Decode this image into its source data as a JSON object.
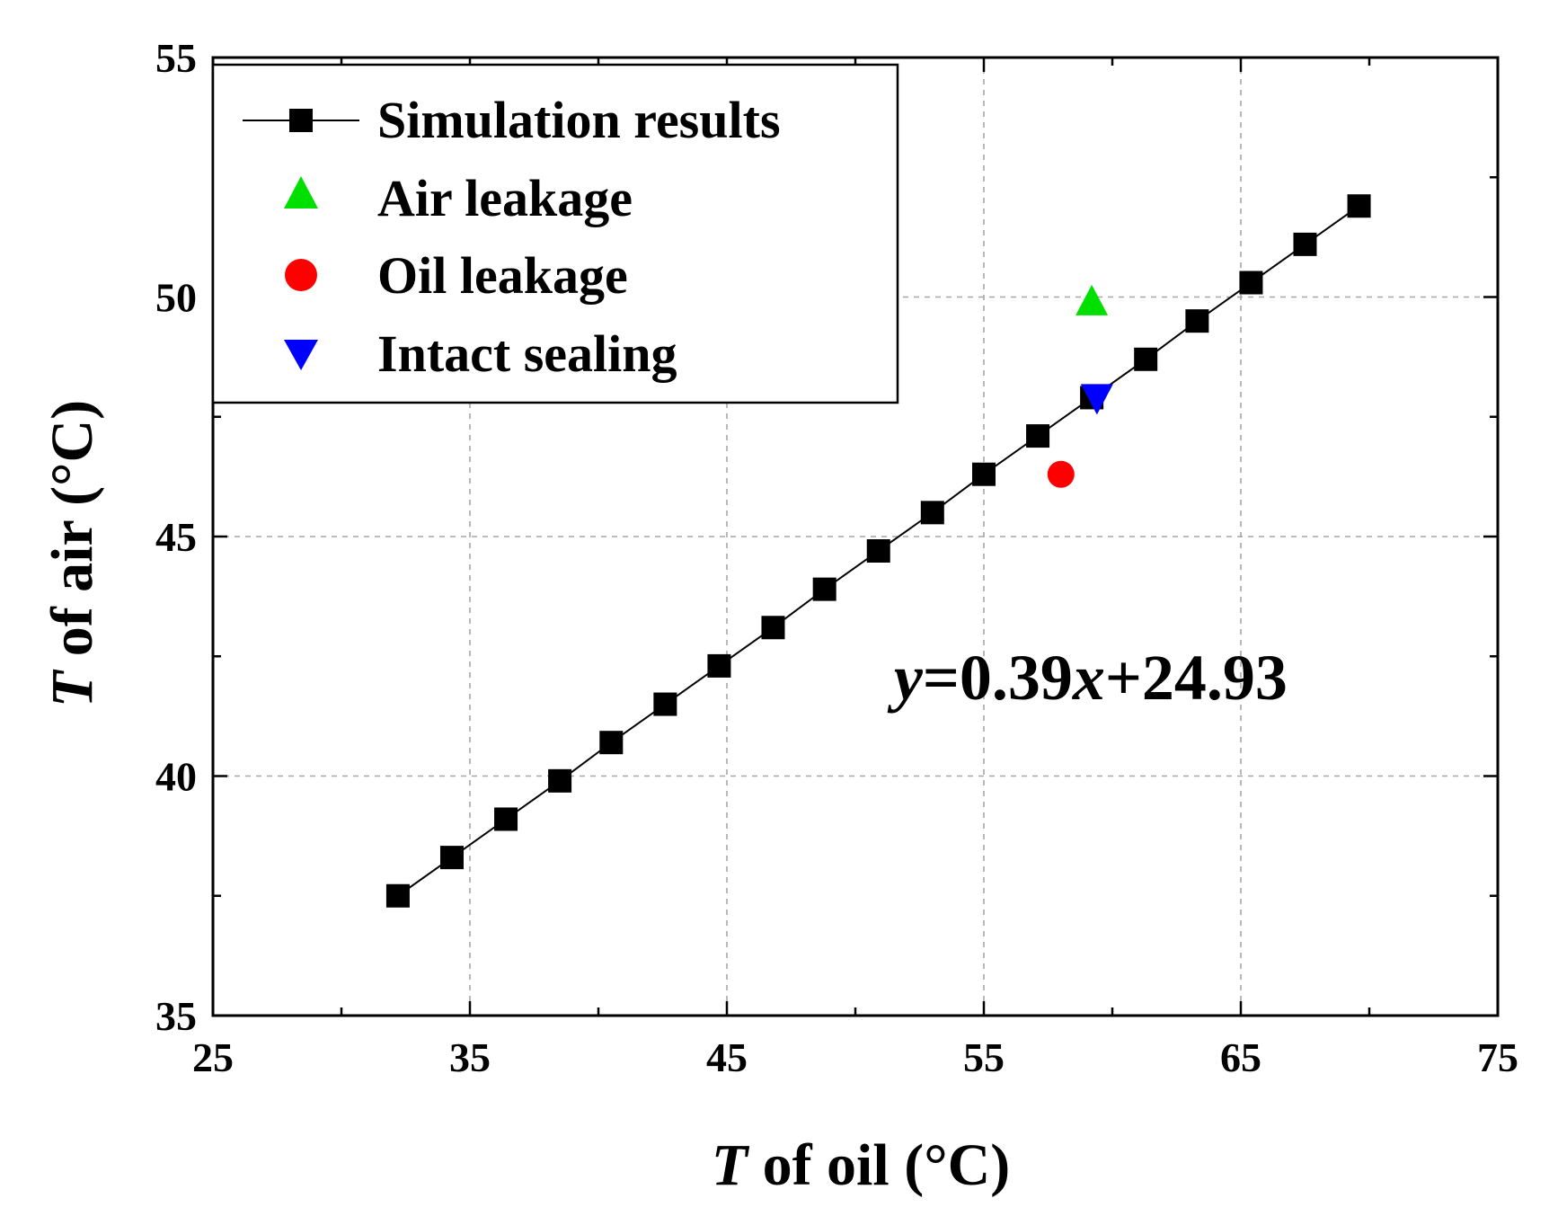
{
  "chart_data": {
    "type": "scatter",
    "xlabel": {
      "italic": "T",
      "rest": " of oil (°C)"
    },
    "ylabel": {
      "italic": "T",
      "rest": " of air (°C)"
    },
    "xlim": [
      25,
      75
    ],
    "ylim": [
      35,
      55
    ],
    "xticks": [
      "25",
      "35",
      "45",
      "55",
      "65",
      "75"
    ],
    "yticks": [
      "35",
      "40",
      "45",
      "50",
      "55"
    ],
    "grid": true,
    "legend_position": "top-left",
    "series": [
      {
        "name": "Simulation results",
        "marker": "square",
        "line": true,
        "color": "#000000",
        "x": [
          32.2,
          34.3,
          36.4,
          38.5,
          40.5,
          42.6,
          44.7,
          46.8,
          48.8,
          50.9,
          53.0,
          55.0,
          57.1,
          59.2,
          61.3,
          63.3,
          65.4,
          67.5,
          69.6
        ],
        "y": [
          37.5,
          38.3,
          39.1,
          39.9,
          40.7,
          41.5,
          42.3,
          43.1,
          43.9,
          44.7,
          45.5,
          46.3,
          47.1,
          47.9,
          48.7,
          49.5,
          50.3,
          51.1,
          51.9
        ]
      },
      {
        "name": "Air leakage",
        "marker": "triangle-up",
        "line": false,
        "color": "#00e000",
        "x": [
          59.2
        ],
        "y": [
          49.9
        ]
      },
      {
        "name": "Oil leakage",
        "marker": "circle",
        "line": false,
        "color": "#ff0000",
        "x": [
          58.0
        ],
        "y": [
          46.3
        ]
      },
      {
        "name": "Intact sealing",
        "marker": "triangle-down",
        "line": false,
        "color": "#0000ff",
        "x": [
          59.4
        ],
        "y": [
          47.9
        ]
      }
    ],
    "annotation": {
      "italic_y": "y",
      "mid": "=0.39",
      "italic_x": "x",
      "tail": "+24.93",
      "x": 51.5,
      "y": 41.6
    }
  }
}
